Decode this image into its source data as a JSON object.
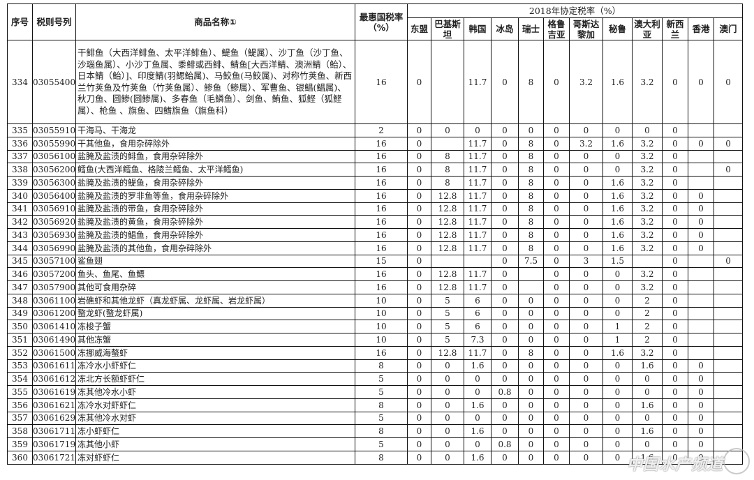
{
  "header": {
    "seq": "序号",
    "code": "税则号列",
    "name": "商品名称①",
    "mfn": "最惠国税率（%）",
    "agreement_group": "2018年协定税率（%）",
    "partners": [
      "东盟",
      "巴基斯坦",
      "韩国",
      "冰岛",
      "瑞士",
      "格鲁吉亚",
      "哥斯达黎加",
      "秘鲁",
      "澳大利亚",
      "新西兰",
      "香港",
      "澳门"
    ]
  },
  "rows": [
    {
      "seq": "334",
      "code": "03055400",
      "name": "干鲱鱼（大西洋鲱鱼、太平洋鲱鱼）、鳀鱼（鳀属）、沙丁鱼（沙丁鱼、沙瑙鱼属）、小沙丁鱼属、黍鲱或西鲱、鲭鱼[大西洋鲭、澳洲鲭（鲐）、日本鲭（鲐）]、印度鲭(羽鳃鲐属)、马鲛鱼(马鲛属)、对称竹荚鱼、新西兰竹荚鱼及竹荚鱼（竹荚鱼属）、鲹鱼（鲹属）、军曹鱼、银鲳(鲳属)、秋刀鱼、圆鲹(圆鲹属)、多春鱼（毛鳞鱼）、剑鱼、鲔鱼、狐鲣（狐鲣属）、枪鱼 、旗鱼、四鳍旗鱼（旗鱼科）",
      "mfn": "16",
      "rates": [
        "0",
        "",
        "11.7",
        "0",
        "8",
        "0",
        "3.2",
        "1.6",
        "3.2",
        "0",
        "0",
        "0"
      ]
    },
    {
      "seq": "335",
      "code": "03055910",
      "name": "干海马、干海龙",
      "mfn": "2",
      "rates": [
        "0",
        "0",
        "0",
        "0",
        "0",
        "0",
        "0",
        "0",
        "0",
        "0",
        "",
        ""
      ]
    },
    {
      "seq": "336",
      "code": "03055990",
      "name": "干其他鱼，食用杂碎除外",
      "mfn": "16",
      "rates": [
        "0",
        "",
        "11.7",
        "0",
        "8",
        "0",
        "3.2",
        "1.6",
        "3.2",
        "0",
        "0",
        "0"
      ]
    },
    {
      "seq": "337",
      "code": "03056100",
      "name": "盐腌及盐渍的鲱鱼，食用杂碎除外",
      "mfn": "16",
      "rates": [
        "0",
        "8",
        "11.7",
        "0",
        "8",
        "0",
        "0",
        "0",
        "3.2",
        "0",
        "",
        ""
      ]
    },
    {
      "seq": "338",
      "code": "03056200",
      "name": "鳕鱼(大西洋鳕鱼、格陵兰鳕鱼、太平洋鳕鱼)",
      "mfn": "16",
      "rates": [
        "0",
        "8",
        "11.7",
        "0",
        "8",
        "0",
        "0",
        "0",
        "3.2",
        "0",
        "",
        "0"
      ]
    },
    {
      "seq": "339",
      "code": "03056300",
      "name": "盐腌及盐渍的鳀鱼，食用杂碎除外",
      "mfn": "16",
      "rates": [
        "0",
        "8",
        "11.7",
        "0",
        "8",
        "0",
        "0",
        "1.6",
        "3.2",
        "0",
        "",
        ""
      ]
    },
    {
      "seq": "340",
      "code": "03056400",
      "name": "盐腌及盐渍的罗非鱼等鱼，食用杂碎除外",
      "mfn": "16",
      "rates": [
        "0",
        "12.8",
        "11.7",
        "0",
        "8",
        "0",
        "0",
        "1.6",
        "3.2",
        "0",
        "0",
        ""
      ]
    },
    {
      "seq": "341",
      "code": "03056910",
      "name": "盐腌及盐渍的带鱼，食用杂碎除外",
      "mfn": "16",
      "rates": [
        "0",
        "12.8",
        "11.7",
        "0",
        "8",
        "0",
        "0",
        "1.6",
        "3.2",
        "0",
        "0",
        ""
      ]
    },
    {
      "seq": "342",
      "code": "03056920",
      "name": "盐腌及盐渍的黄鱼，食用杂碎除外",
      "mfn": "16",
      "rates": [
        "0",
        "12.8",
        "11.7",
        "0",
        "8",
        "0",
        "0",
        "1.6",
        "3.2",
        "0",
        "0",
        ""
      ]
    },
    {
      "seq": "343",
      "code": "03056930",
      "name": "盐腌及盐渍的鲳鱼，食用杂碎除外",
      "mfn": "16",
      "rates": [
        "0",
        "12.8",
        "11.7",
        "0",
        "8",
        "0",
        "0",
        "1.6",
        "3.2",
        "0",
        "0",
        ""
      ]
    },
    {
      "seq": "344",
      "code": "03056990",
      "name": "盐腌及盐渍的其他鱼，食用杂碎除外",
      "mfn": "16",
      "rates": [
        "0",
        "12.8",
        "11.7",
        "0",
        "8",
        "0",
        "0",
        "1.6",
        "3.2",
        "0",
        "0",
        ""
      ]
    },
    {
      "seq": "345",
      "code": "03057100",
      "name": "鲨鱼翅",
      "mfn": "15",
      "rates": [
        "0",
        "",
        "",
        "0",
        "7.5",
        "0",
        "3",
        "1.5",
        "",
        "0",
        "",
        "0"
      ]
    },
    {
      "seq": "346",
      "code": "03057200",
      "name": "鱼头、鱼尾、鱼鳔",
      "mfn": "16",
      "rates": [
        "0",
        "12.8",
        "11.7",
        "0",
        "",
        "0",
        "0",
        "0",
        "3.2",
        "0",
        "",
        ""
      ]
    },
    {
      "seq": "347",
      "code": "03057900",
      "name": "其他可食用杂碎",
      "mfn": "16",
      "rates": [
        "0",
        "12.8",
        "11.7",
        "0",
        "",
        "0",
        "0",
        "0",
        "3.2",
        "0",
        "",
        ""
      ]
    },
    {
      "seq": "348",
      "code": "03061100",
      "name": "岩礁虾和其他龙虾（真龙虾属、龙虾属、岩龙虾属）",
      "mfn": "10",
      "rates": [
        "0",
        "5",
        "6",
        "0",
        "0",
        "0",
        "0",
        "0",
        "2",
        "0",
        "",
        ""
      ]
    },
    {
      "seq": "349",
      "code": "03061200",
      "name": "螯龙虾(螯龙虾属)",
      "mfn": "10",
      "rates": [
        "0",
        "5",
        "6",
        "0",
        "0",
        "0",
        "0",
        "0",
        "2",
        "0",
        "",
        ""
      ]
    },
    {
      "seq": "350",
      "code": "03061410",
      "name": "冻梭子蟹",
      "mfn": "10",
      "rates": [
        "0",
        "5",
        "6",
        "0",
        "0",
        "0",
        "0",
        "1",
        "2",
        "0",
        "",
        ""
      ]
    },
    {
      "seq": "351",
      "code": "03061490",
      "name": "其他冻蟹",
      "mfn": "10",
      "rates": [
        "0",
        "5",
        "7.3",
        "0",
        "0",
        "0",
        "0",
        "1",
        "2",
        "0",
        "",
        ""
      ]
    },
    {
      "seq": "352",
      "code": "03061500",
      "name": "冻挪威海螯虾",
      "mfn": "16",
      "rates": [
        "0",
        "12.8",
        "11.7",
        "0",
        "8",
        "0",
        "0",
        "1.6",
        "3.2",
        "0",
        "",
        ""
      ]
    },
    {
      "seq": "353",
      "code": "03061611",
      "name": "冻冷水小虾虾仁",
      "mfn": "8",
      "rates": [
        "0",
        "0",
        "1.6",
        "0",
        "0",
        "0",
        "0",
        "0",
        "1.6",
        "0",
        "0",
        ""
      ]
    },
    {
      "seq": "354",
      "code": "03061612",
      "name": "冻北方长额虾虾仁",
      "mfn": "5",
      "rates": [
        "0",
        "0",
        "0",
        "0",
        "0",
        "0",
        "0",
        "0",
        "0",
        "0",
        "0",
        ""
      ]
    },
    {
      "seq": "355",
      "code": "03061619",
      "name": "冻其他冷水小虾",
      "mfn": "5",
      "rates": [
        "0",
        "0",
        "0",
        "0.8",
        "0",
        "0",
        "0",
        "0",
        "0",
        "0",
        "0",
        ""
      ]
    },
    {
      "seq": "356",
      "code": "03061621",
      "name": "冻冷水对虾虾仁",
      "mfn": "8",
      "rates": [
        "0",
        "0",
        "1.6",
        "0",
        "0",
        "0",
        "0",
        "0",
        "1.6",
        "0",
        "0",
        ""
      ]
    },
    {
      "seq": "357",
      "code": "03061629",
      "name": "冻其他冷水对虾",
      "mfn": "5",
      "rates": [
        "0",
        "0",
        "0",
        "0",
        "0",
        "0",
        "0",
        "0",
        "0",
        "0",
        "0",
        ""
      ]
    },
    {
      "seq": "358",
      "code": "03061711",
      "name": "冻小虾虾仁",
      "mfn": "8",
      "rates": [
        "0",
        "0",
        "1.6",
        "0",
        "0",
        "0",
        "0",
        "0",
        "1.6",
        "0",
        "0",
        ""
      ]
    },
    {
      "seq": "359",
      "code": "03061719",
      "name": "冻其他小虾",
      "mfn": "5",
      "rates": [
        "0",
        "0",
        "0",
        "0.8",
        "0",
        "0",
        "0",
        "0",
        "0",
        "0",
        "0",
        ""
      ]
    },
    {
      "seq": "360",
      "code": "03061721",
      "name": "冻对虾虾仁",
      "mfn": "8",
      "rates": [
        "0",
        "0",
        "1.6",
        "0",
        "0",
        "0",
        "0",
        "0",
        "1.6",
        "0",
        "0",
        ""
      ]
    }
  ],
  "watermark": "中国水产频道"
}
